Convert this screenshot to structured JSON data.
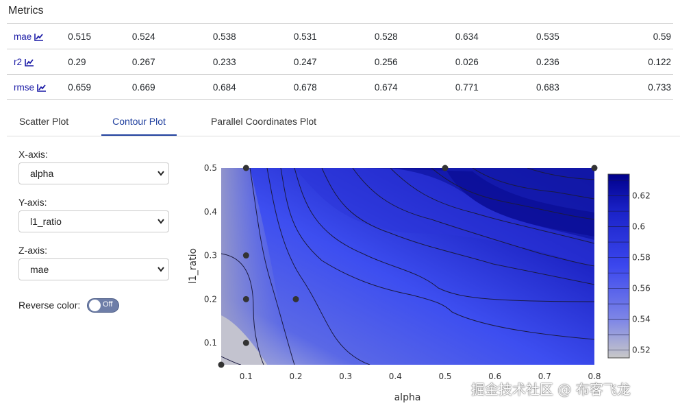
{
  "metrics": {
    "title": "Metrics",
    "rows": [
      {
        "name": "mae",
        "values": [
          "0.515",
          "0.524",
          "0.538",
          "0.531",
          "0.528",
          "0.634",
          "0.535",
          "0.59"
        ]
      },
      {
        "name": "r2",
        "values": [
          "0.29",
          "0.267",
          "0.233",
          "0.247",
          "0.256",
          "0.026",
          "0.236",
          "0.122"
        ]
      },
      {
        "name": "rmse",
        "values": [
          "0.659",
          "0.669",
          "0.684",
          "0.678",
          "0.674",
          "0.771",
          "0.683",
          "0.733"
        ]
      }
    ]
  },
  "tabs": [
    {
      "label": "Scatter Plot",
      "active": false
    },
    {
      "label": "Contour Plot",
      "active": true
    },
    {
      "label": "Parallel Coordinates Plot",
      "active": false
    }
  ],
  "controls": {
    "x_axis_label": "X-axis:",
    "x_axis_value": "alpha",
    "y_axis_label": "Y-axis:",
    "y_axis_value": "l1_ratio",
    "z_axis_label": "Z-axis:",
    "z_axis_value": "mae",
    "reverse_label": "Reverse color:",
    "reverse_state": "Off"
  },
  "watermark": "掘金技术社区 @ 布客飞龙",
  "chart_data": {
    "type": "heatmap",
    "subtype": "contour",
    "xlabel": "alpha",
    "ylabel": "l1_ratio",
    "xlim": [
      0.05,
      0.8
    ],
    "ylim": [
      0.05,
      0.5
    ],
    "x_ticks": [
      "0.1",
      "0.2",
      "0.3",
      "0.4",
      "0.5",
      "0.6",
      "0.7",
      "0.8"
    ],
    "y_ticks": [
      "0.1",
      "0.2",
      "0.3",
      "0.4",
      "0.5"
    ],
    "zlim": [
      0.515,
      0.634
    ],
    "colorbar_ticks": [
      "0.52",
      "0.54",
      "0.56",
      "0.58",
      "0.6",
      "0.62"
    ],
    "colors": {
      "low": "#c8c8c8",
      "mid": "#3b47ee",
      "high": "#00008b"
    },
    "points": [
      {
        "x": 0.05,
        "y": 0.05
      },
      {
        "x": 0.1,
        "y": 0.1
      },
      {
        "x": 0.1,
        "y": 0.2
      },
      {
        "x": 0.1,
        "y": 0.3
      },
      {
        "x": 0.2,
        "y": 0.2
      },
      {
        "x": 0.1,
        "y": 0.5
      },
      {
        "x": 0.5,
        "y": 0.5
      },
      {
        "x": 0.8,
        "y": 0.5
      }
    ]
  }
}
